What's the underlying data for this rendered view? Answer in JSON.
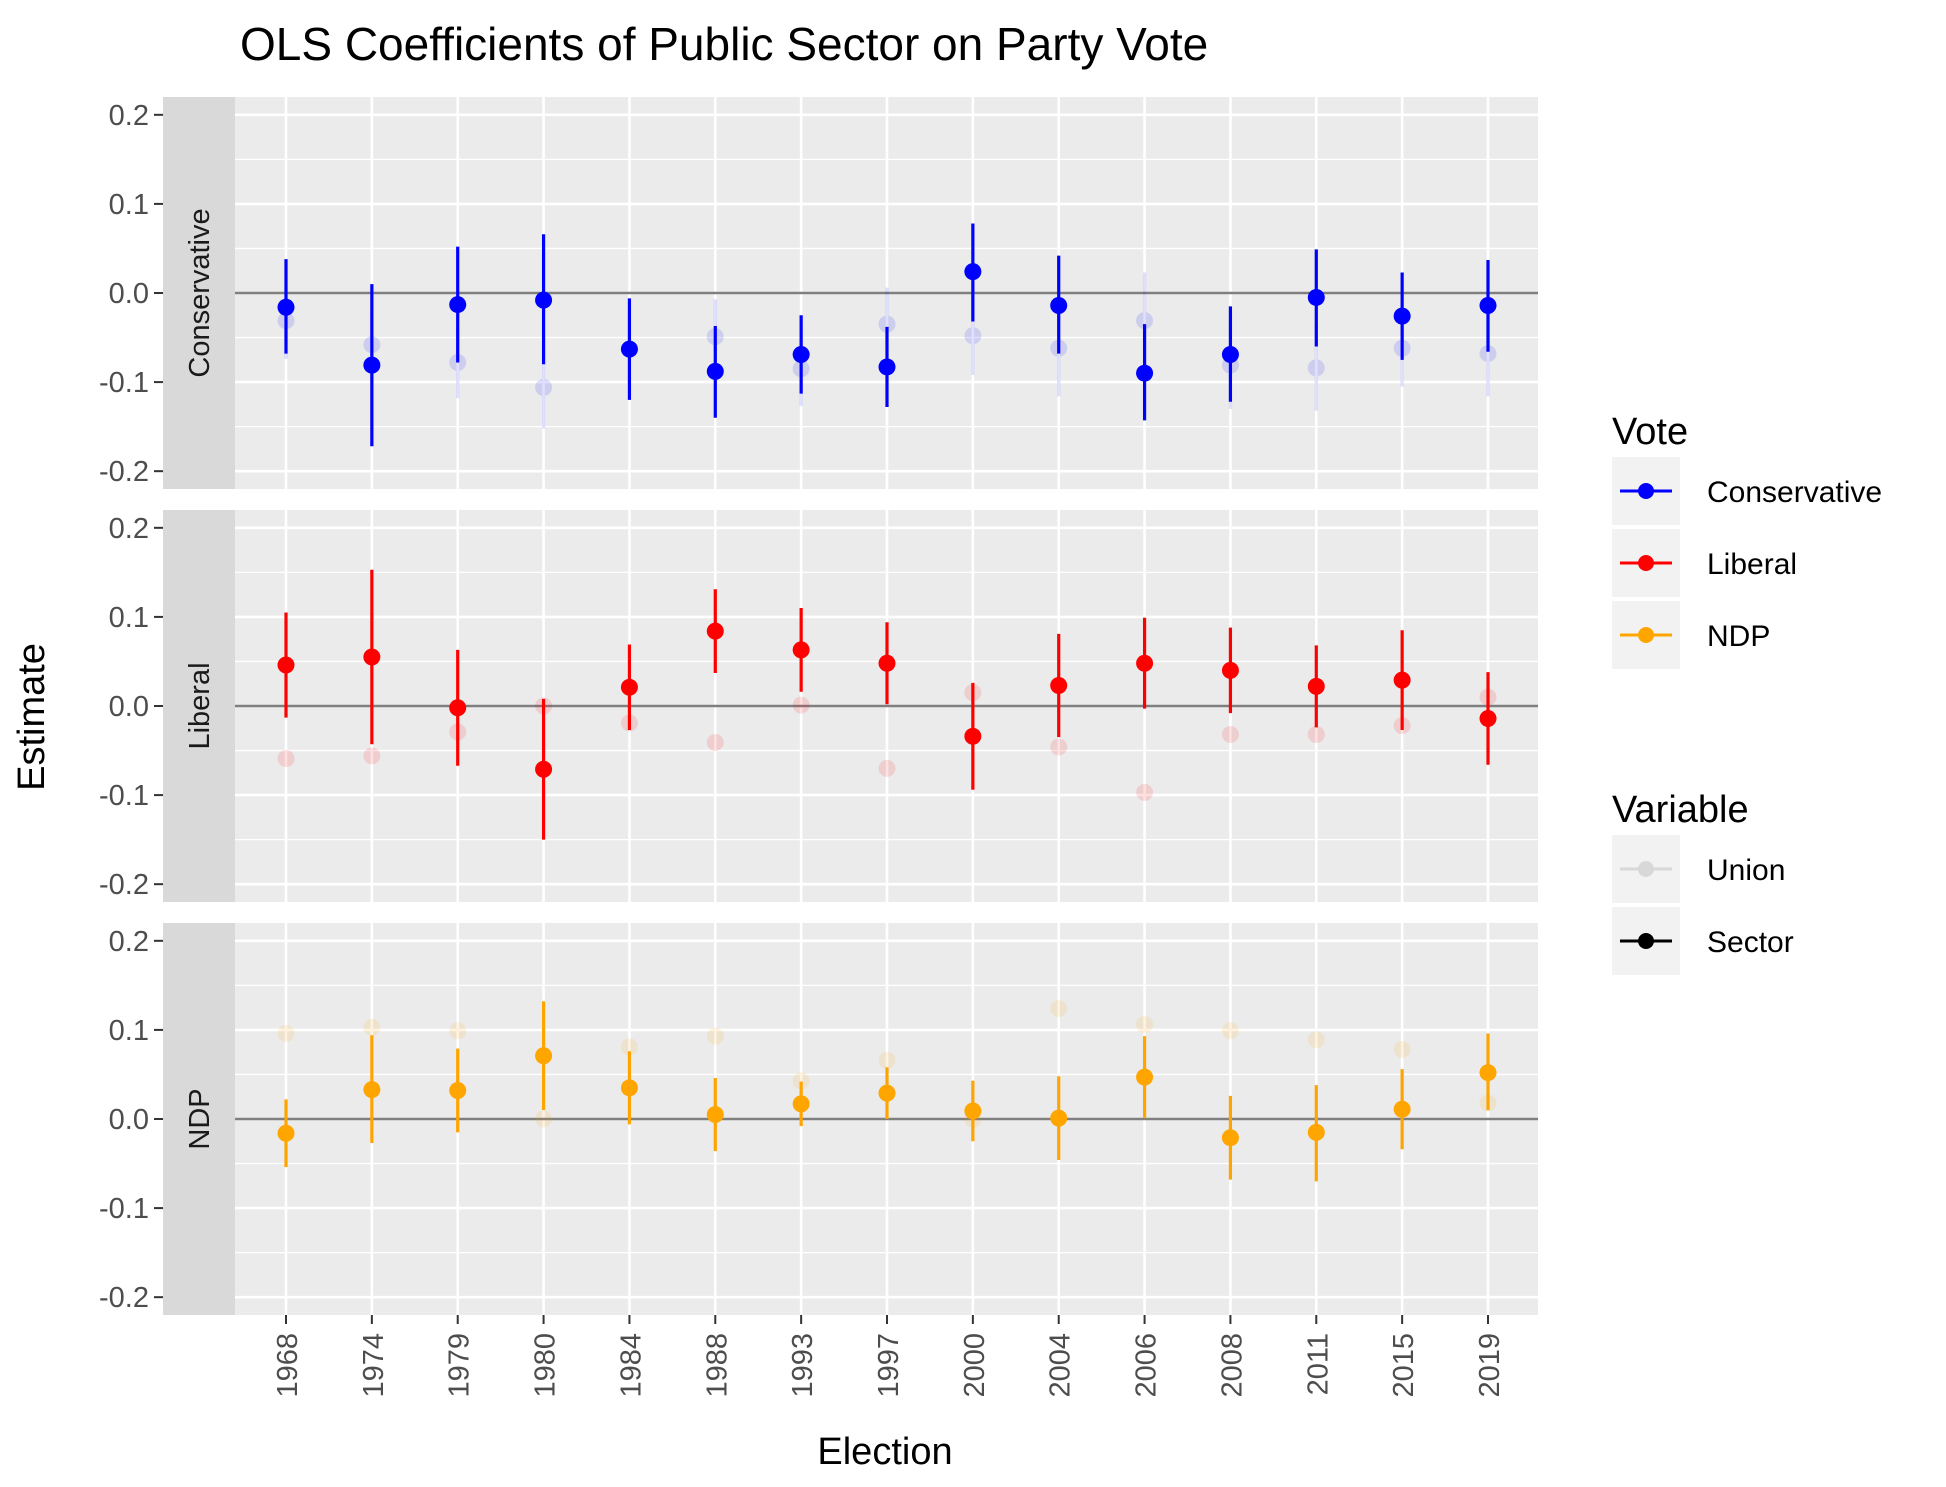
{
  "chart_data": {
    "type": "scatter",
    "title": "OLS Coefficients of Public Sector on Party Vote",
    "xlabel": "Election",
    "ylabel": "Estimate",
    "ylim": [
      -0.22,
      0.22
    ],
    "y_ticks": [
      0.2,
      0.1,
      0.0,
      -0.1,
      -0.2
    ],
    "y_tick_labels": [
      "0.2",
      "0.1",
      "0.0",
      "-0.1",
      "-0.2"
    ],
    "categories": [
      "1968",
      "1974",
      "1979",
      "1980",
      "1984",
      "1988",
      "1993",
      "1997",
      "2000",
      "2004",
      "2006",
      "2008",
      "2011",
      "2015",
      "2019"
    ],
    "grid": true,
    "reference_line": 0,
    "legend_placement": "right",
    "facets": [
      {
        "label": "Conservative",
        "color": "#0000ff",
        "series": [
          {
            "name": "Sector",
            "estimate": [
              -0.016,
              -0.081,
              -0.013,
              -0.008,
              -0.063,
              -0.088,
              -0.069,
              -0.083,
              0.024,
              -0.014,
              -0.09,
              -0.069,
              -0.005,
              -0.026,
              -0.014
            ],
            "lower": [
              -0.068,
              -0.172,
              -0.078,
              -0.08,
              -0.12,
              -0.14,
              -0.113,
              -0.128,
              -0.032,
              -0.068,
              -0.143,
              -0.122,
              -0.06,
              -0.075,
              -0.066
            ],
            "upper": [
              0.038,
              0.01,
              0.052,
              0.066,
              -0.006,
              -0.037,
              -0.025,
              -0.038,
              0.078,
              0.042,
              -0.035,
              -0.015,
              0.049,
              0.023,
              0.037
            ]
          },
          {
            "name": "Union",
            "estimate": [
              -0.031,
              -0.058,
              -0.078,
              -0.106,
              -0.063,
              -0.049,
              -0.085,
              -0.035,
              -0.048,
              -0.062,
              -0.031,
              -0.081,
              -0.084,
              -0.062,
              -0.068
            ],
            "lower": [
              -0.074,
              -0.096,
              -0.118,
              -0.152,
              -0.104,
              -0.091,
              -0.127,
              -0.076,
              -0.092,
              -0.116,
              -0.085,
              -0.13,
              -0.132,
              -0.105,
              -0.116
            ],
            "upper": [
              0.012,
              -0.02,
              -0.038,
              -0.06,
              -0.022,
              -0.007,
              -0.043,
              0.006,
              -0.004,
              -0.008,
              0.023,
              -0.032,
              -0.036,
              -0.019,
              -0.02
            ]
          }
        ]
      },
      {
        "label": "Liberal",
        "color": "#ff0000",
        "series": [
          {
            "name": "Sector",
            "estimate": [
              0.046,
              0.055,
              -0.002,
              -0.071,
              0.021,
              0.084,
              0.063,
              0.048,
              -0.034,
              0.023,
              0.048,
              0.04,
              0.022,
              0.029,
              -0.014
            ],
            "lower": [
              -0.013,
              -0.043,
              -0.067,
              -0.15,
              -0.027,
              0.037,
              0.016,
              0.002,
              -0.094,
              -0.035,
              -0.003,
              -0.008,
              -0.024,
              -0.027,
              -0.066
            ],
            "upper": [
              0.105,
              0.153,
              0.063,
              0.008,
              0.069,
              0.131,
              0.11,
              0.094,
              0.026,
              0.081,
              0.099,
              0.088,
              0.068,
              0.085,
              0.038
            ]
          },
          {
            "name": "Union",
            "estimate": [
              -0.059,
              -0.056,
              -0.029,
              0.0,
              -0.019,
              -0.041,
              0.001,
              -0.07,
              0.015,
              -0.046,
              -0.097,
              -0.032,
              -0.032,
              -0.022,
              0.01
            ]
          }
        ]
      },
      {
        "label": "NDP",
        "color": "#ffa500",
        "series": [
          {
            "name": "Sector",
            "estimate": [
              -0.016,
              0.033,
              0.032,
              0.071,
              0.035,
              0.005,
              0.017,
              0.029,
              0.009,
              0.001,
              0.047,
              -0.021,
              -0.015,
              0.011,
              0.052
            ],
            "lower": [
              -0.054,
              -0.027,
              -0.015,
              0.01,
              -0.006,
              -0.036,
              -0.008,
              0.0,
              -0.025,
              -0.046,
              0.001,
              -0.068,
              -0.07,
              -0.034,
              0.01
            ],
            "upper": [
              0.022,
              0.094,
              0.079,
              0.132,
              0.076,
              0.046,
              0.042,
              0.058,
              0.043,
              0.048,
              0.093,
              0.026,
              0.038,
              0.056,
              0.096
            ]
          },
          {
            "name": "Union",
            "estimate": [
              0.096,
              0.103,
              0.099,
              0.0,
              0.081,
              0.093,
              0.043,
              0.066,
              0.0,
              0.124,
              0.106,
              0.099,
              0.089,
              0.078,
              0.018
            ]
          }
        ]
      }
    ],
    "legends": [
      {
        "title": "Vote",
        "entries": [
          {
            "label": "Conservative",
            "color": "#0000ff"
          },
          {
            "label": "Liberal",
            "color": "#ff0000"
          },
          {
            "label": "NDP",
            "color": "#ffa500"
          }
        ]
      },
      {
        "title": "Variable",
        "entries": [
          {
            "label": "Union",
            "alpha": 0.1
          },
          {
            "label": "Sector",
            "alpha": 1
          }
        ]
      }
    ]
  }
}
